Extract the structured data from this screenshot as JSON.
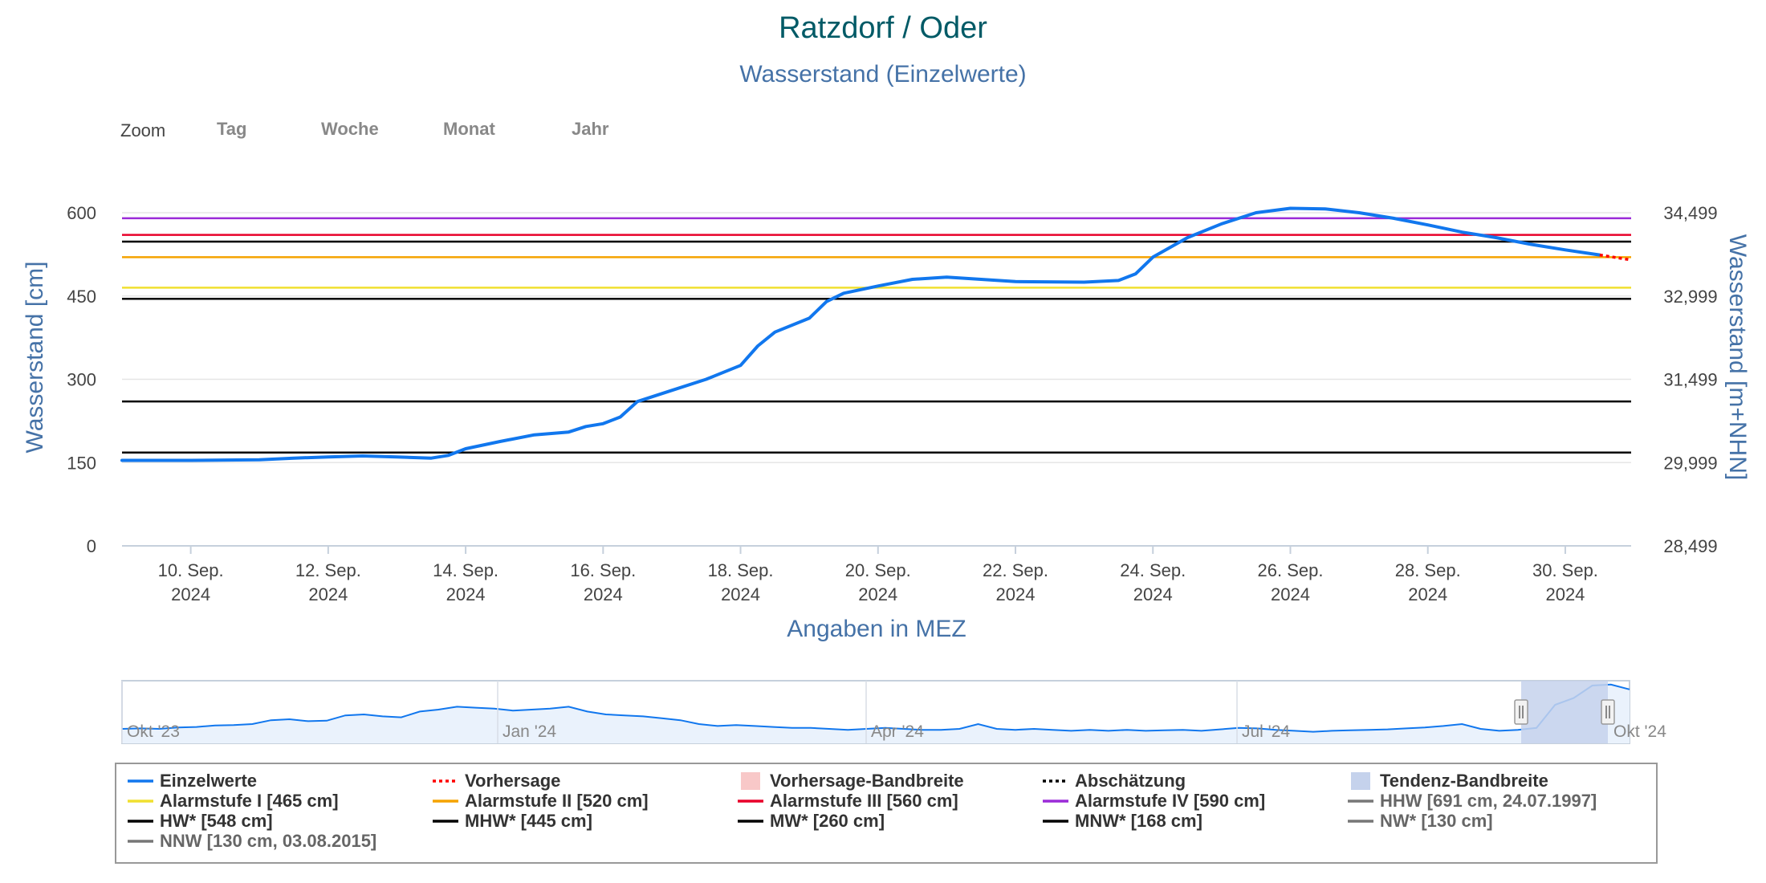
{
  "header": {
    "title": "Ratzdorf / Oder",
    "subtitle": "Wasserstand (Einzelwerte)"
  },
  "zoom": {
    "label": "Zoom",
    "buttons": [
      "Tag",
      "Woche",
      "Monat",
      "Jahr"
    ]
  },
  "colors": {
    "title": "#005a66",
    "subtitle": "#4572a7",
    "series": "#1177ee",
    "forecast": "#ff0000",
    "alarm1": "#f0e030",
    "alarm2": "#f5a300",
    "alarm3": "#e8002a",
    "alarm4": "#9b2bd8",
    "reference": "#000000",
    "grid": "#e6e6e6",
    "navigator_fill": "#eaf2fc",
    "navigator_mask": "#c5d2ec"
  },
  "chart_data": {
    "type": "line",
    "xlabel": "Angaben in MEZ",
    "ylabel": "Wasserstand [cm]",
    "ylabel_right": "Wasserstand [m+NHN]",
    "ylim": [
      0,
      600
    ],
    "yticks": [
      0,
      150,
      300,
      450,
      600
    ],
    "yticks_right": [
      "28,499",
      "29,999",
      "31,499",
      "32,999",
      "34,499"
    ],
    "xlim": [
      "2024-09-09",
      "2024-09-30T23:00"
    ],
    "xticks": [
      {
        "date": "2024-09-10",
        "line1": "10. Sep.",
        "line2": "2024"
      },
      {
        "date": "2024-09-12",
        "line1": "12. Sep.",
        "line2": "2024"
      },
      {
        "date": "2024-09-14",
        "line1": "14. Sep.",
        "line2": "2024"
      },
      {
        "date": "2024-09-16",
        "line1": "16. Sep.",
        "line2": "2024"
      },
      {
        "date": "2024-09-18",
        "line1": "18. Sep.",
        "line2": "2024"
      },
      {
        "date": "2024-09-20",
        "line1": "20. Sep.",
        "line2": "2024"
      },
      {
        "date": "2024-09-22",
        "line1": "22. Sep.",
        "line2": "2024"
      },
      {
        "date": "2024-09-24",
        "line1": "24. Sep.",
        "line2": "2024"
      },
      {
        "date": "2024-09-26",
        "line1": "26. Sep.",
        "line2": "2024"
      },
      {
        "date": "2024-09-28",
        "line1": "28. Sep.",
        "line2": "2024"
      },
      {
        "date": "2024-09-30",
        "line1": "30. Sep.",
        "line2": "2024"
      }
    ],
    "grid": true,
    "thresholds": [
      {
        "name": "Alarmstufe IV",
        "value": 590,
        "color": "#9b2bd8"
      },
      {
        "name": "Alarmstufe III",
        "value": 560,
        "color": "#e8002a"
      },
      {
        "name": "HW*",
        "value": 548,
        "color": "#000000"
      },
      {
        "name": "Alarmstufe II",
        "value": 520,
        "color": "#f5a300"
      },
      {
        "name": "Alarmstufe I",
        "value": 465,
        "color": "#f0e030"
      },
      {
        "name": "MHW*",
        "value": 445,
        "color": "#000000"
      },
      {
        "name": "MW*",
        "value": 260,
        "color": "#000000"
      },
      {
        "name": "MNW*",
        "value": 168,
        "color": "#000000"
      }
    ],
    "series": [
      {
        "name": "Einzelwerte",
        "points": [
          [
            "2024-09-09",
            154
          ],
          [
            "2024-09-10",
            154
          ],
          [
            "2024-09-11",
            155
          ],
          [
            "2024-09-11T12:00",
            158
          ],
          [
            "2024-09-12",
            160
          ],
          [
            "2024-09-12T12:00",
            162
          ],
          [
            "2024-09-13",
            160
          ],
          [
            "2024-09-13T12:00",
            158
          ],
          [
            "2024-09-13T18:00",
            163
          ],
          [
            "2024-09-14",
            175
          ],
          [
            "2024-09-14T12:00",
            188
          ],
          [
            "2024-09-15",
            200
          ],
          [
            "2024-09-15T12:00",
            205
          ],
          [
            "2024-09-15T18:00",
            215
          ],
          [
            "2024-09-16",
            220
          ],
          [
            "2024-09-16T06:00",
            232
          ],
          [
            "2024-09-16T12:00",
            260
          ],
          [
            "2024-09-17",
            280
          ],
          [
            "2024-09-17T12:00",
            300
          ],
          [
            "2024-09-18",
            325
          ],
          [
            "2024-09-18T06:00",
            360
          ],
          [
            "2024-09-18T12:00",
            385
          ],
          [
            "2024-09-19",
            410
          ],
          [
            "2024-09-19T06:00",
            440
          ],
          [
            "2024-09-19T12:00",
            455
          ],
          [
            "2024-09-20",
            468
          ],
          [
            "2024-09-20T12:00",
            480
          ],
          [
            "2024-09-21",
            484
          ],
          [
            "2024-09-21T12:00",
            480
          ],
          [
            "2024-09-22",
            476
          ],
          [
            "2024-09-23",
            475
          ],
          [
            "2024-09-23T12:00",
            478
          ],
          [
            "2024-09-23T18:00",
            490
          ],
          [
            "2024-09-24",
            520
          ],
          [
            "2024-09-24T12:00",
            555
          ],
          [
            "2024-09-25",
            580
          ],
          [
            "2024-09-25T12:00",
            600
          ],
          [
            "2024-09-26",
            608
          ],
          [
            "2024-09-26T12:00",
            607
          ],
          [
            "2024-09-27",
            600
          ],
          [
            "2024-09-27T12:00",
            590
          ],
          [
            "2024-09-28",
            578
          ],
          [
            "2024-09-28T12:00",
            565
          ],
          [
            "2024-09-29",
            555
          ],
          [
            "2024-09-29T12:00",
            543
          ],
          [
            "2024-09-30",
            533
          ],
          [
            "2024-09-30T12:00",
            524
          ]
        ]
      },
      {
        "name": "Vorhersage",
        "points": [
          [
            "2024-09-30T12:00",
            524
          ],
          [
            "2024-09-30T23:00",
            515
          ]
        ]
      }
    ]
  },
  "navigator": {
    "labels": [
      "Okt '23",
      "Jan '24",
      "Apr '24",
      "Jul '24",
      "Okt '24"
    ],
    "values": [
      150,
      155,
      150,
      165,
      170,
      185,
      190,
      200,
      240,
      250,
      230,
      235,
      290,
      300,
      280,
      270,
      330,
      350,
      380,
      370,
      360,
      340,
      350,
      360,
      380,
      330,
      300,
      290,
      280,
      260,
      240,
      200,
      180,
      190,
      180,
      170,
      160,
      160,
      150,
      140,
      150,
      160,
      150,
      140,
      140,
      150,
      200,
      150,
      140,
      150,
      140,
      130,
      140,
      130,
      140,
      130,
      135,
      140,
      130,
      145,
      160,
      155,
      140,
      130,
      120,
      130,
      135,
      140,
      145,
      155,
      165,
      180,
      200,
      150,
      130,
      140,
      160,
      400,
      470,
      600,
      610,
      560
    ],
    "ylim": [
      0,
      650
    ]
  },
  "legend": {
    "items": [
      {
        "label": "Einzelwerte",
        "symbol": "line",
        "color": "#1177ee"
      },
      {
        "label": "Vorhersage",
        "symbol": "dotted",
        "color": "#ff0000"
      },
      {
        "label": "Vorhersage-Bandbreite",
        "symbol": "box",
        "color": "#f8c8c8"
      },
      {
        "label": "Abschätzung",
        "symbol": "dotted",
        "color": "#000000"
      },
      {
        "label": "Tendenz-Bandbreite",
        "symbol": "box",
        "color": "#c5d2ec"
      },
      {
        "label": "Alarmstufe I [465 cm]",
        "symbol": "line",
        "color": "#f0e030"
      },
      {
        "label": "Alarmstufe II [520 cm]",
        "symbol": "line",
        "color": "#f5a300"
      },
      {
        "label": "Alarmstufe III [560 cm]",
        "symbol": "line",
        "color": "#e8002a"
      },
      {
        "label": "Alarmstufe IV [590 cm]",
        "symbol": "line",
        "color": "#9b2bd8"
      },
      {
        "label": "HHW [691 cm, 24.07.1997]",
        "symbol": "line",
        "color": "#777777",
        "muted": true
      },
      {
        "label": "HW* [548 cm]",
        "symbol": "line",
        "color": "#000000"
      },
      {
        "label": "MHW* [445 cm]",
        "symbol": "line",
        "color": "#000000"
      },
      {
        "label": "MW* [260 cm]",
        "symbol": "line",
        "color": "#000000"
      },
      {
        "label": "MNW* [168 cm]",
        "symbol": "line",
        "color": "#000000"
      },
      {
        "label": "NW* [130 cm]",
        "symbol": "line",
        "color": "#777777",
        "muted": true
      },
      {
        "label": "NNW [130 cm, 03.08.2015]",
        "symbol": "line",
        "color": "#777777",
        "muted": true
      }
    ]
  }
}
